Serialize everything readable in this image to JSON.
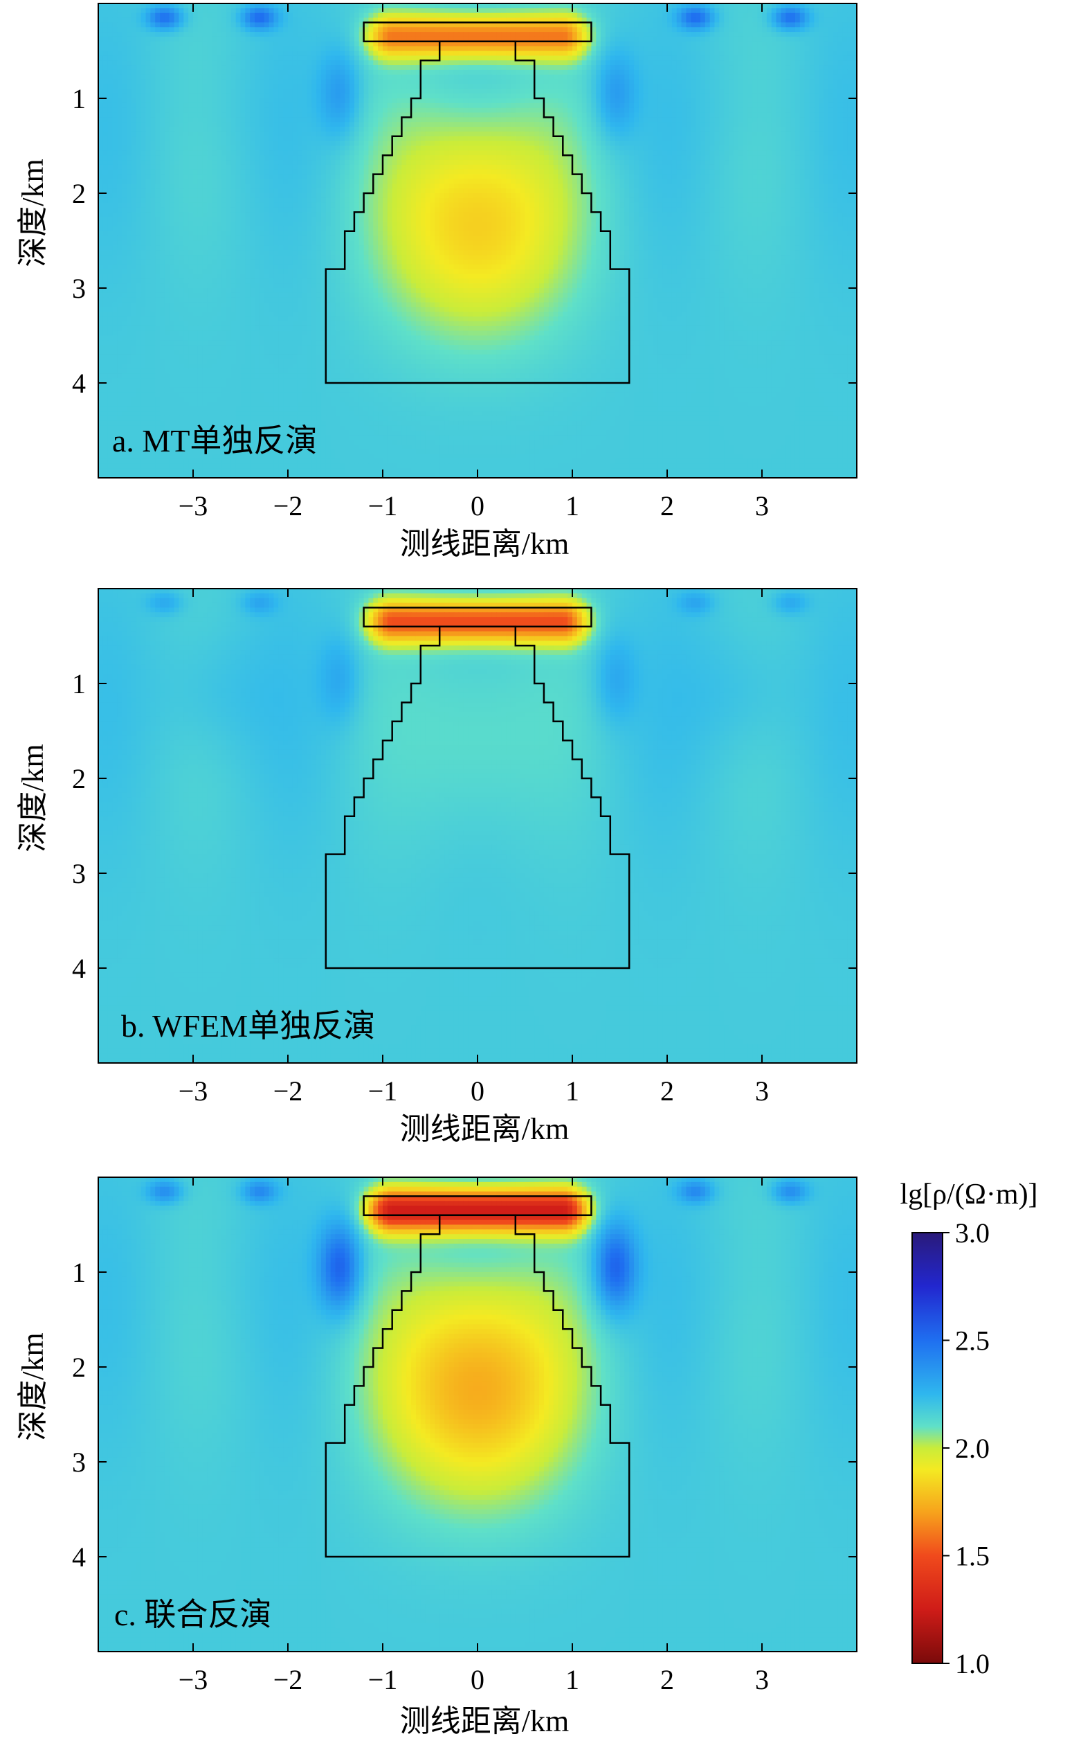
{
  "chart_data": [
    {
      "type": "heatmap",
      "panel_label": "a. MT单独反演",
      "xlabel": "测线距离/km",
      "ylabel": "深度/km",
      "xlim": [
        -4,
        4
      ],
      "ylim": [
        5,
        0
      ],
      "xticks": [
        -3,
        -2,
        -1,
        0,
        1,
        2,
        3
      ],
      "xtick_labels": [
        "−3",
        "−2",
        "−1",
        "0",
        "1",
        "2",
        "3"
      ],
      "yticks": [
        1,
        2,
        3,
        4
      ],
      "ytick_labels": [
        "1",
        "2",
        "3",
        "4"
      ],
      "anomaly": {
        "body_peak": 1.8,
        "body_sigma": [
          0.95,
          1.15
        ],
        "body_center_depth": 2.3,
        "cap_value": 1.6,
        "side_lows": [
          2.35,
          2.2
        ],
        "top_highs": 2.5
      }
    },
    {
      "type": "heatmap",
      "panel_label": "b. WFEM单独反演",
      "xlabel": "测线距离/km",
      "ylabel": "深度/km",
      "xlim": [
        -4,
        4
      ],
      "ylim": [
        5,
        0
      ],
      "xticks": [
        -3,
        -2,
        -1,
        0,
        1,
        2,
        3
      ],
      "xtick_labels": [
        "−3",
        "−2",
        "−1",
        "0",
        "1",
        "2",
        "3"
      ],
      "yticks": [
        1,
        2,
        3,
        4
      ],
      "ytick_labels": [
        "1",
        "2",
        "3",
        "4"
      ],
      "anomaly": {
        "body_peak": 2.08,
        "body_sigma": [
          0.7,
          1.1
        ],
        "body_center_depth": 1.5,
        "cap_value": 1.5,
        "side_lows": [
          2.3,
          2.25
        ],
        "top_highs": 2.3
      }
    },
    {
      "type": "heatmap",
      "panel_label": "c. 联合反演",
      "xlabel": "测线距离/km",
      "ylabel": "深度/km",
      "xlim": [
        -4,
        4
      ],
      "ylim": [
        5,
        0
      ],
      "xticks": [
        -3,
        -2,
        -1,
        0,
        1,
        2,
        3
      ],
      "xtick_labels": [
        "−3",
        "−2",
        "−1",
        "0",
        "1",
        "2",
        "3"
      ],
      "yticks": [
        1,
        2,
        3,
        4
      ],
      "ytick_labels": [
        "1",
        "2",
        "3",
        "4"
      ],
      "anomaly": {
        "body_peak": 1.7,
        "body_sigma": [
          0.95,
          1.15
        ],
        "body_center_depth": 2.2,
        "cap_value": 1.25,
        "side_lows": [
          2.55,
          2.2
        ],
        "top_highs": 2.4
      }
    }
  ],
  "model_outline": {
    "description_units": "km",
    "cap_rect": {
      "x0": -1.2,
      "x1": 1.2,
      "y0": 0.2,
      "y1": 0.4
    },
    "body_polygon": [
      [
        -0.4,
        0.4
      ],
      [
        -0.4,
        0.6
      ],
      [
        -0.6,
        0.6
      ],
      [
        -0.6,
        0.8
      ],
      [
        -0.6,
        1.0
      ],
      [
        -0.7,
        1.0
      ],
      [
        -0.7,
        1.2
      ],
      [
        -0.8,
        1.2
      ],
      [
        -0.8,
        1.4
      ],
      [
        -0.9,
        1.4
      ],
      [
        -0.9,
        1.6
      ],
      [
        -1.0,
        1.6
      ],
      [
        -1.0,
        1.8
      ],
      [
        -1.1,
        1.8
      ],
      [
        -1.1,
        2.0
      ],
      [
        -1.2,
        2.0
      ],
      [
        -1.2,
        2.2
      ],
      [
        -1.3,
        2.2
      ],
      [
        -1.3,
        2.4
      ],
      [
        -1.4,
        2.4
      ],
      [
        -1.4,
        2.8
      ],
      [
        -1.6,
        2.8
      ],
      [
        -1.6,
        4.0
      ],
      [
        1.6,
        4.0
      ],
      [
        1.6,
        2.8
      ],
      [
        1.4,
        2.8
      ],
      [
        1.4,
        2.4
      ],
      [
        1.3,
        2.4
      ],
      [
        1.3,
        2.2
      ],
      [
        1.2,
        2.2
      ],
      [
        1.2,
        2.0
      ],
      [
        1.1,
        2.0
      ],
      [
        1.1,
        1.8
      ],
      [
        1.0,
        1.8
      ],
      [
        1.0,
        1.6
      ],
      [
        0.9,
        1.6
      ],
      [
        0.9,
        1.4
      ],
      [
        0.8,
        1.4
      ],
      [
        0.8,
        1.2
      ],
      [
        0.7,
        1.2
      ],
      [
        0.7,
        1.0
      ],
      [
        0.6,
        1.0
      ],
      [
        0.6,
        0.6
      ],
      [
        0.4,
        0.6
      ],
      [
        0.4,
        0.4
      ]
    ]
  },
  "colorbar": {
    "title": "lg[ρ/(Ω·m)]",
    "min": 1.0,
    "max": 3.0,
    "ticks": [
      3.0,
      2.5,
      2.0,
      1.5,
      1.0
    ],
    "tick_labels": [
      "3.0",
      "2.5",
      "2.0",
      "1.5",
      "1.0"
    ],
    "colormap": [
      [
        1.0,
        "#7a0a0a"
      ],
      [
        1.25,
        "#cf1c18"
      ],
      [
        1.5,
        "#f04a1c"
      ],
      [
        1.7,
        "#f7a21c"
      ],
      [
        1.9,
        "#f4ea22"
      ],
      [
        2.0,
        "#c9ec3a"
      ],
      [
        2.1,
        "#5fe0c8"
      ],
      [
        2.25,
        "#2fb7ee"
      ],
      [
        2.5,
        "#1f6ff0"
      ],
      [
        2.75,
        "#2227cf"
      ],
      [
        3.0,
        "#2a1a7a"
      ]
    ],
    "background_value": 2.18
  }
}
